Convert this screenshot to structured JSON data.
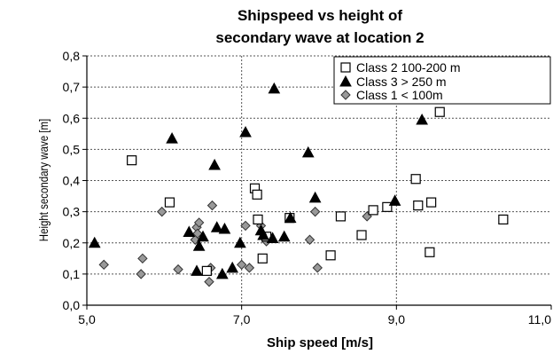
{
  "chart_data": {
    "type": "scatter",
    "title": [
      "Shipspeed vs height of",
      "secondary wave at location 2"
    ],
    "xlabel": "Ship speed [m/s]",
    "ylabel": "Height secondary wave [m]",
    "xlim": [
      5.0,
      11.0
    ],
    "ylim": [
      0.0,
      0.8
    ],
    "x_ticks": [
      "5,0",
      "7,0",
      "9,0",
      "11,0"
    ],
    "y_ticks": [
      "0,0",
      "0,1",
      "0,2",
      "0,3",
      "0,4",
      "0,5",
      "0,6",
      "0,7",
      "0,8"
    ],
    "grid": true,
    "legend_position": "top-right",
    "series": [
      {
        "name": "Class 2 100-200 m",
        "marker": "square",
        "color": "#ffffff",
        "points": [
          [
            5.58,
            0.465
          ],
          [
            6.07,
            0.33
          ],
          [
            6.55,
            0.11
          ],
          [
            7.17,
            0.375
          ],
          [
            7.2,
            0.355
          ],
          [
            7.21,
            0.275
          ],
          [
            7.27,
            0.15
          ],
          [
            7.32,
            0.22
          ],
          [
            7.62,
            0.28
          ],
          [
            8.15,
            0.16
          ],
          [
            8.28,
            0.285
          ],
          [
            8.55,
            0.225
          ],
          [
            8.7,
            0.305
          ],
          [
            8.88,
            0.315
          ],
          [
            9.25,
            0.405
          ],
          [
            9.28,
            0.32
          ],
          [
            9.43,
            0.17
          ],
          [
            9.45,
            0.33
          ],
          [
            9.56,
            0.62
          ],
          [
            10.38,
            0.275
          ]
        ]
      },
      {
        "name": "Class 3 > 250 m",
        "marker": "triangle",
        "color": "#000000",
        "points": [
          [
            5.1,
            0.2
          ],
          [
            6.1,
            0.535
          ],
          [
            6.32,
            0.235
          ],
          [
            6.42,
            0.11
          ],
          [
            6.45,
            0.19
          ],
          [
            6.5,
            0.22
          ],
          [
            6.65,
            0.45
          ],
          [
            6.68,
            0.25
          ],
          [
            6.75,
            0.1
          ],
          [
            6.78,
            0.245
          ],
          [
            6.88,
            0.12
          ],
          [
            6.98,
            0.2
          ],
          [
            7.05,
            0.555
          ],
          [
            7.25,
            0.24
          ],
          [
            7.28,
            0.225
          ],
          [
            7.4,
            0.215
          ],
          [
            7.42,
            0.695
          ],
          [
            7.55,
            0.22
          ],
          [
            7.63,
            0.28
          ],
          [
            7.86,
            0.49
          ],
          [
            7.95,
            0.345
          ],
          [
            8.98,
            0.335
          ],
          [
            9.33,
            0.595
          ]
        ]
      },
      {
        "name": "Class 1 < 100m",
        "marker": "diamond",
        "color": "#999999",
        "points": [
          [
            5.22,
            0.13
          ],
          [
            5.7,
            0.1
          ],
          [
            5.72,
            0.15
          ],
          [
            5.97,
            0.3
          ],
          [
            6.18,
            0.115
          ],
          [
            6.4,
            0.21
          ],
          [
            6.42,
            0.25
          ],
          [
            6.43,
            0.23
          ],
          [
            6.45,
            0.265
          ],
          [
            6.58,
            0.075
          ],
          [
            6.6,
            0.12
          ],
          [
            6.62,
            0.32
          ],
          [
            7.0,
            0.13
          ],
          [
            7.05,
            0.255
          ],
          [
            7.1,
            0.12
          ],
          [
            7.25,
            0.255
          ],
          [
            7.32,
            0.205
          ],
          [
            7.88,
            0.21
          ],
          [
            7.95,
            0.3
          ],
          [
            7.98,
            0.12
          ],
          [
            8.62,
            0.285
          ]
        ]
      }
    ]
  }
}
